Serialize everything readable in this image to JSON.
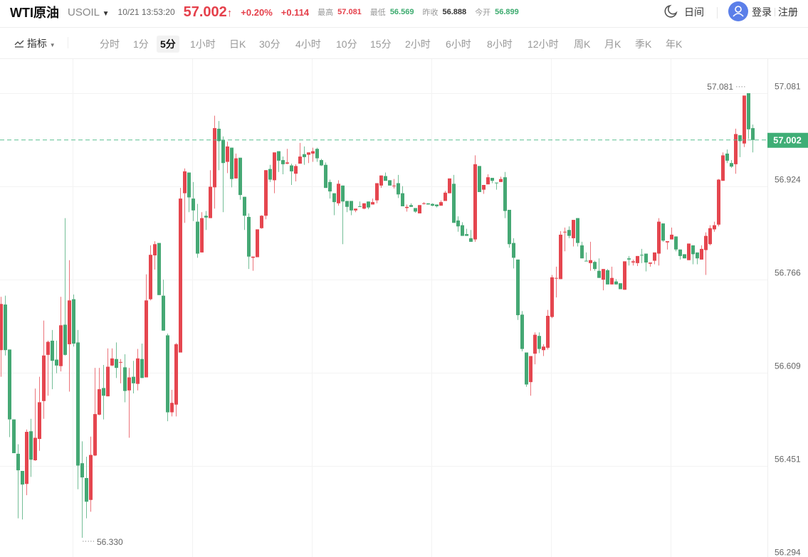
{
  "header": {
    "name": "WTI原油",
    "symbol": "USOIL",
    "timestamp": "10/21 13:53:20",
    "price": "57.002",
    "change_pct": "+0.20%",
    "change": "+0.114",
    "stats": [
      {
        "label": "最高",
        "value": "57.081",
        "color": "red"
      },
      {
        "label": "最低",
        "value": "56.569",
        "color": "green"
      },
      {
        "label": "昨收",
        "value": "56.888",
        "color": "dark"
      },
      {
        "label": "今开",
        "value": "56.899",
        "color": "green"
      }
    ],
    "theme_label": "日间",
    "login_label": "登录",
    "register_label": "注册"
  },
  "toolbar": {
    "indicator_label": "指标",
    "periods": [
      "分时",
      "1分",
      "5分",
      "1小时",
      "日K",
      "30分",
      "4小时",
      "10分",
      "15分",
      "2小时",
      "6小时",
      "8小时",
      "12小时",
      "周K",
      "月K",
      "季K",
      "年K"
    ],
    "active_period": "5分"
  },
  "colors": {
    "up": "#e5464f",
    "down": "#45a874",
    "price_line": "#5cbf91",
    "accent_blue": "#5b7fe9"
  },
  "chart_data": {
    "type": "candlestick",
    "y_ticks": [
      "57.081",
      "56.924",
      "56.766",
      "56.609",
      "56.451",
      "56.294"
    ],
    "current_price": "57.002",
    "high_marker": "57.081",
    "low_marker": "56.330",
    "grid": true,
    "candle_format": [
      "open",
      "high",
      "low",
      "close"
    ],
    "candles": [
      [
        56.647,
        56.737,
        56.602,
        56.725
      ],
      [
        56.724,
        56.739,
        56.638,
        56.647
      ],
      [
        56.648,
        56.648,
        56.5,
        56.53
      ],
      [
        56.53,
        56.53,
        56.473,
        56.473
      ],
      [
        56.472,
        56.488,
        56.363,
        56.444
      ],
      [
        56.443,
        56.443,
        56.361,
        56.42
      ],
      [
        56.421,
        56.513,
        56.402,
        56.509
      ],
      [
        56.51,
        56.531,
        56.433,
        56.462
      ],
      [
        56.461,
        56.582,
        56.46,
        56.499
      ],
      [
        56.497,
        56.602,
        56.477,
        56.559
      ],
      [
        56.561,
        56.697,
        56.531,
        56.638
      ],
      [
        56.639,
        56.663,
        56.57,
        56.661
      ],
      [
        56.663,
        56.681,
        56.581,
        56.629
      ],
      [
        56.631,
        56.663,
        56.608,
        56.621
      ],
      [
        56.62,
        56.737,
        56.611,
        56.689
      ],
      [
        56.69,
        56.87,
        56.638,
        56.639
      ],
      [
        56.657,
        56.799,
        56.577,
        56.731
      ],
      [
        56.733,
        56.741,
        56.653,
        56.658
      ],
      [
        56.66,
        56.681,
        56.412,
        56.452
      ],
      [
        56.456,
        56.493,
        56.33,
        56.432
      ],
      [
        56.431,
        56.467,
        56.363,
        56.391
      ],
      [
        56.394,
        56.501,
        56.374,
        56.47
      ],
      [
        56.469,
        56.617,
        56.468,
        56.539
      ],
      [
        56.538,
        56.617,
        56.537,
        56.581
      ],
      [
        56.583,
        56.622,
        56.53,
        56.57
      ],
      [
        56.569,
        56.65,
        56.569,
        56.619
      ],
      [
        56.621,
        56.65,
        56.62,
        56.633
      ],
      [
        56.632,
        56.66,
        56.6,
        56.617
      ],
      [
        56.626,
        56.632,
        56.591,
        56.627
      ],
      [
        56.618,
        56.64,
        56.559,
        56.578
      ],
      [
        56.579,
        56.617,
        56.499,
        56.601
      ],
      [
        56.602,
        56.629,
        56.574,
        56.591
      ],
      [
        56.59,
        56.649,
        56.579,
        56.633
      ],
      [
        56.632,
        56.658,
        56.6,
        56.6
      ],
      [
        56.601,
        56.775,
        56.601,
        56.731
      ],
      [
        56.733,
        56.824,
        56.731,
        56.808
      ],
      [
        56.807,
        56.831,
        56.783,
        56.826
      ],
      [
        56.828,
        56.828,
        56.74,
        56.74
      ],
      [
        56.739,
        56.766,
        56.68,
        56.68
      ],
      [
        56.672,
        56.675,
        56.527,
        56.542
      ],
      [
        56.542,
        56.58,
        56.535,
        56.558
      ],
      [
        56.555,
        56.659,
        56.535,
        56.657
      ],
      [
        56.643,
        56.921,
        56.643,
        56.903
      ],
      [
        56.912,
        56.954,
        56.862,
        56.949
      ],
      [
        56.947,
        56.947,
        56.88,
        56.905
      ],
      [
        56.903,
        56.931,
        56.865,
        56.883
      ],
      [
        56.864,
        56.894,
        56.803,
        56.81
      ],
      [
        56.812,
        56.88,
        56.812,
        56.87
      ],
      [
        56.874,
        56.882,
        56.85,
        56.871
      ],
      [
        56.87,
        56.951,
        56.87,
        56.923
      ],
      [
        56.922,
        57.043,
        56.886,
        57.022
      ],
      [
        57.021,
        57.034,
        56.951,
        57.0
      ],
      [
        57.002,
        57.008,
        56.88,
        56.963
      ],
      [
        56.965,
        56.999,
        56.946,
        56.991
      ],
      [
        56.989,
        56.989,
        56.922,
        56.936
      ],
      [
        56.937,
        56.979,
        56.937,
        56.971
      ],
      [
        56.972,
        56.972,
        56.901,
        56.909
      ],
      [
        56.906,
        56.906,
        56.85,
        56.874
      ],
      [
        56.872,
        56.878,
        56.784,
        56.805
      ],
      [
        56.803,
        56.805,
        56.781,
        56.805
      ],
      [
        56.804,
        56.851,
        56.804,
        56.851
      ],
      [
        56.853,
        56.875,
        56.852,
        56.874
      ],
      [
        56.874,
        56.951,
        56.868,
        56.951
      ],
      [
        56.953,
        56.96,
        56.931,
        56.935
      ],
      [
        56.934,
        56.981,
        56.912,
        56.981
      ],
      [
        56.983,
        56.983,
        56.948,
        56.967
      ],
      [
        56.968,
        56.974,
        56.944,
        56.961
      ],
      [
        56.962,
        56.987,
        56.961,
        56.964
      ],
      [
        56.959,
        56.962,
        56.926,
        56.949
      ],
      [
        56.945,
        56.961,
        56.932,
        56.958
      ],
      [
        56.962,
        56.997,
        56.962,
        56.974
      ],
      [
        56.978,
        56.991,
        56.96,
        56.973
      ],
      [
        56.977,
        56.981,
        56.963,
        56.981
      ],
      [
        56.979,
        56.989,
        56.965,
        56.983
      ],
      [
        56.987,
        56.989,
        56.965,
        56.971
      ],
      [
        56.968,
        56.97,
        56.958,
        56.959
      ],
      [
        56.96,
        56.964,
        56.921,
        56.921
      ],
      [
        56.931,
        56.935,
        56.903,
        56.915
      ],
      [
        56.912,
        56.912,
        56.875,
        56.897
      ],
      [
        56.895,
        56.934,
        56.891,
        56.928
      ],
      [
        56.925,
        56.925,
        56.826,
        56.898
      ],
      [
        56.899,
        56.899,
        56.88,
        56.889
      ],
      [
        56.899,
        56.899,
        56.875,
        56.883
      ],
      [
        56.883,
        56.886,
        56.88,
        56.886
      ],
      [
        56.89,
        56.898,
        56.889,
        56.889
      ],
      [
        56.886,
        56.895,
        56.885,
        56.895
      ],
      [
        56.898,
        56.898,
        56.885,
        56.888
      ],
      [
        56.893,
        56.903,
        56.893,
        56.897
      ],
      [
        56.9,
        56.929,
        56.895,
        56.929
      ],
      [
        56.925,
        56.942,
        56.921,
        56.942
      ],
      [
        56.941,
        56.947,
        56.933,
        56.933
      ],
      [
        56.934,
        56.934,
        56.925,
        56.925
      ],
      [
        56.924,
        56.936,
        56.92,
        56.925
      ],
      [
        56.929,
        56.943,
        56.904,
        56.91
      ],
      [
        56.912,
        56.924,
        56.89,
        56.89
      ],
      [
        56.887,
        56.893,
        56.881,
        56.889
      ],
      [
        56.892,
        56.895,
        56.889,
        56.889
      ],
      [
        56.887,
        56.887,
        56.879,
        56.881
      ],
      [
        56.878,
        56.892,
        56.878,
        56.892
      ],
      [
        56.894,
        56.897,
        56.893,
        56.895
      ],
      [
        56.895,
        56.895,
        56.893,
        56.893
      ],
      [
        56.894,
        56.895,
        56.89,
        56.891
      ],
      [
        56.893,
        56.893,
        56.888,
        56.89
      ],
      [
        56.891,
        56.9,
        56.891,
        56.897
      ],
      [
        56.899,
        56.916,
        56.899,
        56.913
      ],
      [
        56.912,
        56.937,
        56.912,
        56.937
      ],
      [
        56.928,
        56.943,
        56.862,
        56.862
      ],
      [
        56.866,
        56.873,
        56.847,
        56.856
      ],
      [
        56.858,
        56.863,
        56.84,
        56.84
      ],
      [
        56.843,
        56.852,
        56.84,
        56.84
      ],
      [
        56.836,
        56.85,
        56.83,
        56.83
      ],
      [
        56.834,
        56.976,
        56.83,
        56.961
      ],
      [
        56.958,
        56.958,
        56.914,
        56.914
      ],
      [
        56.918,
        56.926,
        56.911,
        56.926
      ],
      [
        56.927,
        56.944,
        56.927,
        56.939
      ],
      [
        56.938,
        56.938,
        56.929,
        56.933
      ],
      [
        56.93,
        56.93,
        56.918,
        56.929
      ],
      [
        56.931,
        56.94,
        56.931,
        56.936
      ],
      [
        56.939,
        56.948,
        56.87,
        56.882
      ],
      [
        56.884,
        56.884,
        56.82,
        56.826
      ],
      [
        56.828,
        56.836,
        56.785,
        56.803
      ],
      [
        56.8,
        56.8,
        56.698,
        56.706
      ],
      [
        56.707,
        56.713,
        56.645,
        56.649
      ],
      [
        56.643,
        56.643,
        56.585,
        56.589
      ],
      [
        56.593,
        56.637,
        56.57,
        56.637
      ],
      [
        56.641,
        56.677,
        56.623,
        56.673
      ],
      [
        56.671,
        56.677,
        56.642,
        56.649
      ],
      [
        56.647,
        56.657,
        56.637,
        56.653
      ],
      [
        56.651,
        56.715,
        56.648,
        56.705
      ],
      [
        56.703,
        56.774,
        56.701,
        56.77
      ],
      [
        56.768,
        56.788,
        56.736,
        56.769
      ],
      [
        56.767,
        56.848,
        56.767,
        56.842
      ],
      [
        56.846,
        56.854,
        56.814,
        56.847
      ],
      [
        56.85,
        56.856,
        56.836,
        56.84
      ],
      [
        56.836,
        56.867,
        56.822,
        56.867
      ],
      [
        56.87,
        56.87,
        56.822,
        56.828
      ],
      [
        56.824,
        56.83,
        56.802,
        56.802
      ],
      [
        56.798,
        56.812,
        56.797,
        56.797
      ],
      [
        56.794,
        56.83,
        56.781,
        56.799
      ],
      [
        56.796,
        56.798,
        56.781,
        56.784
      ],
      [
        56.781,
        56.802,
        56.769,
        56.769
      ],
      [
        56.766,
        56.784,
        56.748,
        56.784
      ],
      [
        56.782,
        56.784,
        56.758,
        56.758
      ],
      [
        56.758,
        56.788,
        56.758,
        56.769
      ],
      [
        56.763,
        56.767,
        56.758,
        56.758
      ],
      [
        56.76,
        56.76,
        56.75,
        56.75
      ],
      [
        56.749,
        56.797,
        56.749,
        56.797
      ],
      [
        56.802,
        56.806,
        56.79,
        56.8
      ],
      [
        56.795,
        56.8,
        56.79,
        56.797
      ],
      [
        56.794,
        56.806,
        56.789,
        56.806
      ],
      [
        56.808,
        56.818,
        56.794,
        56.807
      ],
      [
        56.81,
        56.81,
        56.78,
        56.795
      ],
      [
        56.793,
        56.795,
        56.788,
        56.795
      ],
      [
        56.798,
        56.812,
        56.792,
        56.812
      ],
      [
        56.81,
        56.87,
        56.79,
        56.864
      ],
      [
        56.861,
        56.861,
        56.83,
        56.832
      ],
      [
        56.829,
        56.831,
        56.817,
        56.831
      ],
      [
        56.834,
        56.854,
        56.834,
        56.842
      ],
      [
        56.839,
        56.839,
        56.814,
        56.817
      ],
      [
        56.817,
        56.817,
        56.8,
        56.806
      ],
      [
        56.809,
        56.809,
        56.802,
        56.802
      ],
      [
        56.799,
        56.827,
        56.799,
        56.827
      ],
      [
        56.824,
        56.824,
        56.792,
        56.809
      ],
      [
        56.812,
        56.812,
        56.792,
        56.802
      ],
      [
        56.8,
        56.824,
        56.8,
        56.818
      ],
      [
        56.816,
        56.846,
        56.774,
        56.84
      ],
      [
        56.826,
        56.858,
        56.824,
        56.853
      ],
      [
        56.851,
        56.864,
        56.847,
        56.858
      ],
      [
        56.859,
        56.936,
        56.856,
        56.935
      ],
      [
        56.933,
        56.981,
        56.933,
        56.976
      ],
      [
        56.979,
        56.986,
        56.963,
        56.967
      ],
      [
        56.963,
        56.968,
        56.955,
        56.957
      ],
      [
        56.961,
        57.021,
        56.945,
        57.012
      ],
      [
        57.01,
        57.01,
        56.973,
        57.0
      ],
      [
        56.996,
        57.077,
        56.99,
        57.077
      ],
      [
        57.081,
        57.081,
        57.004,
        57.02
      ],
      [
        57.022,
        57.028,
        56.981,
        57.002
      ]
    ]
  }
}
